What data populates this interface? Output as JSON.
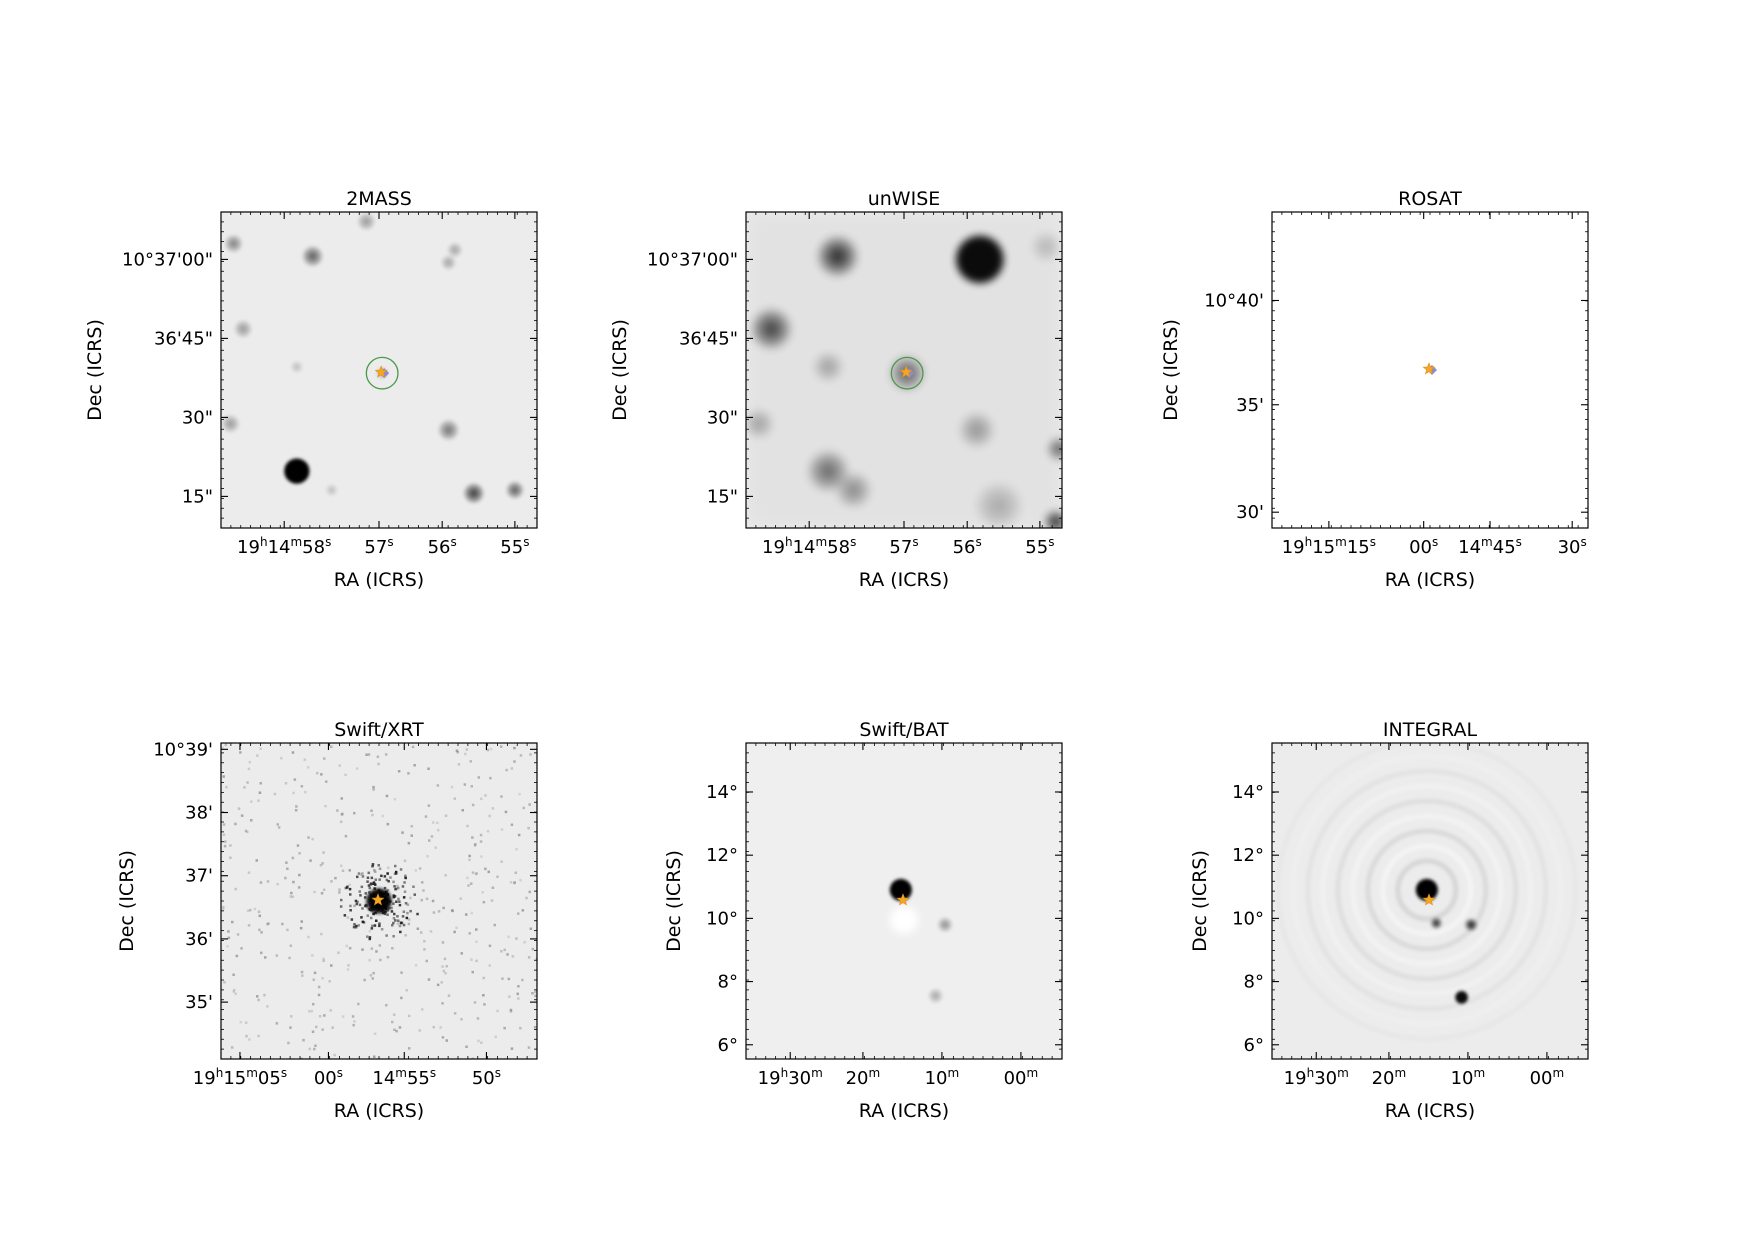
{
  "figure": {
    "panels": [
      {
        "title": "2MASS",
        "xlabel": "RA (ICRS)",
        "ylabel": "Dec (ICRS)",
        "image_style": "blurred-optical",
        "x_ticks": [
          {
            "parts": [
              [
                "19",
                ""
              ],
              [
                "h",
                "sup"
              ],
              [
                "14",
                ""
              ],
              [
                "m",
                "sup"
              ],
              [
                "58",
                ""
              ],
              [
                "s",
                "sup"
              ]
            ]
          },
          {
            "parts": [
              [
                "57",
                ""
              ],
              [
                "s",
                "sup"
              ]
            ]
          },
          {
            "parts": [
              [
                "56",
                ""
              ],
              [
                "s",
                "sup"
              ]
            ]
          },
          {
            "parts": [
              [
                "55",
                ""
              ],
              [
                "s",
                "sup"
              ]
            ]
          }
        ],
        "y_ticks": [
          "10°37'00\"",
          "36'45\"",
          "30\"",
          "15\""
        ],
        "sources": [
          {
            "x": 0.04,
            "y": 0.1,
            "r": 0.03,
            "o": 0.45
          },
          {
            "x": 0.29,
            "y": 0.14,
            "r": 0.035,
            "o": 0.6
          },
          {
            "x": 0.46,
            "y": 0.03,
            "r": 0.03,
            "o": 0.35
          },
          {
            "x": 0.74,
            "y": 0.12,
            "r": 0.025,
            "o": 0.3
          },
          {
            "x": 0.72,
            "y": 0.16,
            "r": 0.025,
            "o": 0.3
          },
          {
            "x": 0.07,
            "y": 0.37,
            "r": 0.03,
            "o": 0.35
          },
          {
            "x": 0.24,
            "y": 0.49,
            "r": 0.02,
            "o": 0.2
          },
          {
            "x": 0.03,
            "y": 0.67,
            "r": 0.03,
            "o": 0.35
          },
          {
            "x": 0.24,
            "y": 0.82,
            "r": 0.04,
            "o": 1.0
          },
          {
            "x": 0.72,
            "y": 0.69,
            "r": 0.035,
            "o": 0.5
          },
          {
            "x": 0.8,
            "y": 0.89,
            "r": 0.035,
            "o": 0.75
          },
          {
            "x": 0.93,
            "y": 0.88,
            "r": 0.03,
            "o": 0.6
          },
          {
            "x": 0.35,
            "y": 0.88,
            "r": 0.02,
            "o": 0.2
          },
          {
            "x": 0.51,
            "y": 0.51,
            "r": 0.02,
            "o": 0.3
          }
        ],
        "target": {
          "x": 0.51,
          "y": 0.51
        },
        "circle_radius": 0.05
      },
      {
        "title": "unWISE",
        "xlabel": "RA (ICRS)",
        "ylabel": "Dec (ICRS)",
        "image_style": "blurred-infrared",
        "x_ticks": [
          {
            "parts": [
              [
                "19",
                ""
              ],
              [
                "h",
                "sup"
              ],
              [
                "14",
                ""
              ],
              [
                "m",
                "sup"
              ],
              [
                "58",
                ""
              ],
              [
                "s",
                "sup"
              ]
            ]
          },
          {
            "parts": [
              [
                "57",
                ""
              ],
              [
                "s",
                "sup"
              ]
            ]
          },
          {
            "parts": [
              [
                "56",
                ""
              ],
              [
                "s",
                "sup"
              ]
            ]
          },
          {
            "parts": [
              [
                "55",
                ""
              ],
              [
                "s",
                "sup"
              ]
            ]
          }
        ],
        "y_ticks": [
          "10°37'00\"",
          "36'45\"",
          "30\"",
          "15\""
        ],
        "sources": [
          {
            "x": 0.29,
            "y": 0.14,
            "r": 0.07,
            "o": 0.85
          },
          {
            "x": 0.74,
            "y": 0.15,
            "r": 0.075,
            "o": 0.95
          },
          {
            "x": 0.08,
            "y": 0.37,
            "r": 0.07,
            "o": 0.75
          },
          {
            "x": 0.26,
            "y": 0.49,
            "r": 0.05,
            "o": 0.3
          },
          {
            "x": 0.51,
            "y": 0.51,
            "r": 0.06,
            "o": 0.6
          },
          {
            "x": 0.04,
            "y": 0.67,
            "r": 0.05,
            "o": 0.3
          },
          {
            "x": 0.26,
            "y": 0.82,
            "r": 0.07,
            "o": 0.55
          },
          {
            "x": 0.34,
            "y": 0.88,
            "r": 0.06,
            "o": 0.4
          },
          {
            "x": 0.73,
            "y": 0.69,
            "r": 0.06,
            "o": 0.35
          },
          {
            "x": 0.95,
            "y": 0.11,
            "r": 0.05,
            "o": 0.2
          },
          {
            "x": 0.99,
            "y": 0.75,
            "r": 0.04,
            "o": 0.6
          },
          {
            "x": 0.98,
            "y": 0.98,
            "r": 0.04,
            "o": 0.85
          },
          {
            "x": 0.8,
            "y": 0.93,
            "r": 0.08,
            "o": 0.25
          }
        ],
        "target": {
          "x": 0.51,
          "y": 0.51
        },
        "circle_radius": 0.05
      },
      {
        "title": "ROSAT",
        "xlabel": "RA (ICRS)",
        "ylabel": "Dec (ICRS)",
        "image_style": "blank",
        "x_ticks": [
          {
            "parts": [
              [
                "19",
                ""
              ],
              [
                "h",
                "sup"
              ],
              [
                "15",
                ""
              ],
              [
                "m",
                "sup"
              ],
              [
                "15",
                ""
              ],
              [
                "s",
                "sup"
              ]
            ]
          },
          {
            "parts": [
              [
                "00",
                ""
              ],
              [
                "s",
                "sup"
              ]
            ]
          },
          {
            "parts": [
              [
                "14",
                ""
              ],
              [
                "m",
                "sup"
              ],
              [
                "45",
                ""
              ],
              [
                "s",
                "sup"
              ]
            ]
          },
          {
            "parts": [
              [
                "30",
                ""
              ],
              [
                "s",
                "sup"
              ]
            ]
          }
        ],
        "y_ticks": [
          "10°40'",
          "35'",
          "30'"
        ],
        "sources": [],
        "target": {
          "x": 0.5,
          "y": 0.5
        },
        "circle_radius": 0
      },
      {
        "title": "Swift/XRT",
        "xlabel": "RA (ICRS)",
        "ylabel": "Dec (ICRS)",
        "image_style": "xray-counts",
        "x_ticks": [
          {
            "parts": [
              [
                "19",
                ""
              ],
              [
                "h",
                "sup"
              ],
              [
                "15",
                ""
              ],
              [
                "m",
                "sup"
              ],
              [
                "05",
                ""
              ],
              [
                "s",
                "sup"
              ]
            ]
          },
          {
            "parts": [
              [
                "00",
                ""
              ],
              [
                "s",
                "sup"
              ]
            ]
          },
          {
            "parts": [
              [
                "14",
                ""
              ],
              [
                "m",
                "sup"
              ],
              [
                "55",
                ""
              ],
              [
                "s",
                "sup"
              ]
            ]
          },
          {
            "parts": [
              [
                "50",
                ""
              ],
              [
                "s",
                "sup"
              ]
            ]
          }
        ],
        "y_ticks": [
          "10°39'",
          "38'",
          "37'",
          "36'",
          "35'"
        ],
        "sources": [
          {
            "x": 0.5,
            "y": 0.5,
            "r": 0.04,
            "o": 0.95
          }
        ],
        "target": {
          "x": 0.5,
          "y": 0.5
        },
        "circle_radius": 0
      },
      {
        "title": "Swift/BAT",
        "xlabel": "RA (ICRS)",
        "ylabel": "Dec (ICRS)",
        "image_style": "hard-xray",
        "x_ticks": [
          {
            "parts": [
              [
                "19",
                ""
              ],
              [
                "h",
                "sup"
              ],
              [
                "30",
                ""
              ],
              [
                "m",
                "sup"
              ]
            ]
          },
          {
            "parts": [
              [
                "20",
                ""
              ],
              [
                "m",
                "sup"
              ]
            ]
          },
          {
            "parts": [
              [
                "10",
                ""
              ],
              [
                "m",
                "sup"
              ]
            ]
          },
          {
            "parts": [
              [
                "00",
                ""
              ],
              [
                "m",
                "sup"
              ]
            ]
          }
        ],
        "y_ticks": [
          "14°",
          "12°",
          "10°",
          "8°",
          "6°"
        ],
        "sources": [
          {
            "x": 0.49,
            "y": 0.465,
            "r": 0.035,
            "o": 1.0
          },
          {
            "x": 0.63,
            "y": 0.575,
            "r": 0.025,
            "o": 0.4
          },
          {
            "x": 0.6,
            "y": 0.8,
            "r": 0.025,
            "o": 0.3
          }
        ],
        "target": {
          "x": 0.5,
          "y": 0.5
        },
        "circle_radius": 0
      },
      {
        "title": "INTEGRAL",
        "xlabel": "RA (ICRS)",
        "ylabel": "Dec (ICRS)",
        "image_style": "rings",
        "x_ticks": [
          {
            "parts": [
              [
                "19",
                ""
              ],
              [
                "h",
                "sup"
              ],
              [
                "30",
                ""
              ],
              [
                "m",
                "sup"
              ]
            ]
          },
          {
            "parts": [
              [
                "20",
                ""
              ],
              [
                "m",
                "sup"
              ]
            ]
          },
          {
            "parts": [
              [
                "10",
                ""
              ],
              [
                "m",
                "sup"
              ]
            ]
          },
          {
            "parts": [
              [
                "00",
                ""
              ],
              [
                "m",
                "sup"
              ]
            ]
          }
        ],
        "y_ticks": [
          "14°",
          "12°",
          "10°",
          "8°",
          "6°"
        ],
        "sources": [
          {
            "x": 0.49,
            "y": 0.465,
            "r": 0.035,
            "o": 1.0
          },
          {
            "x": 0.52,
            "y": 0.57,
            "r": 0.02,
            "o": 0.85
          },
          {
            "x": 0.63,
            "y": 0.575,
            "r": 0.022,
            "o": 0.9
          },
          {
            "x": 0.6,
            "y": 0.805,
            "r": 0.02,
            "o": 0.95
          }
        ],
        "target": {
          "x": 0.5,
          "y": 0.5
        },
        "circle_radius": 0
      }
    ]
  }
}
